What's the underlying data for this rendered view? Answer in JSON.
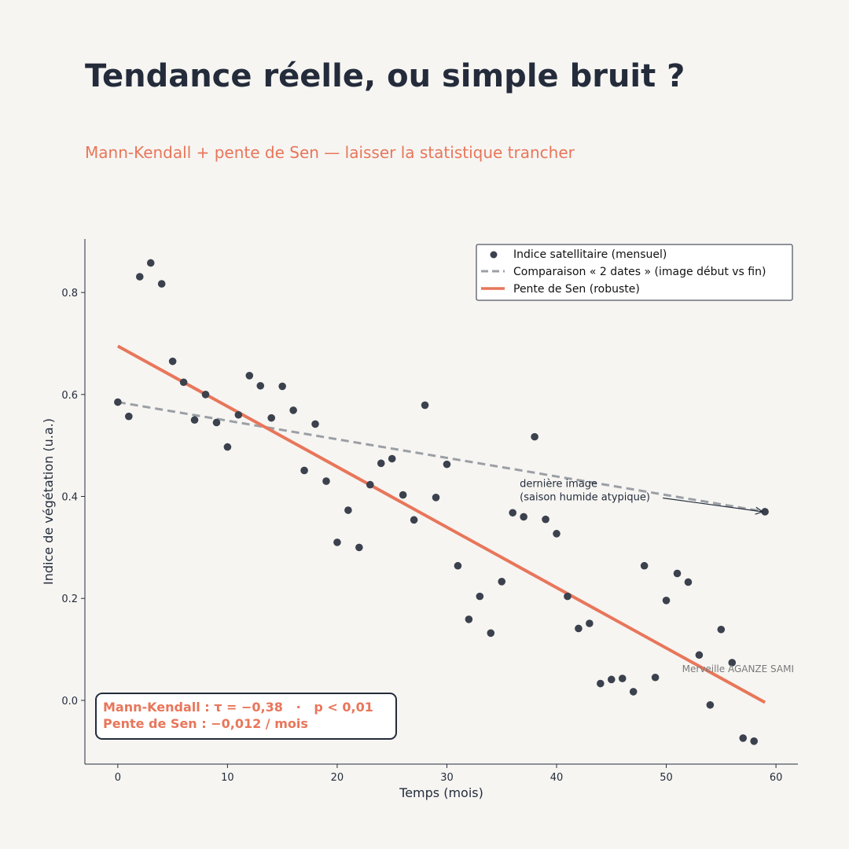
{
  "header": {
    "title": "Tendance réelle, ou simple bruit ?",
    "subtitle": "Mann-Kendall + pente de Sen — laisser la statistique trancher"
  },
  "footer": {
    "credit": "Merveille AGANZE SAMI"
  },
  "colors": {
    "points": "#3b414d",
    "sen_line": "#e8765a",
    "two_dates_line": "#9b9fa5",
    "text": "#242c3b",
    "stats_text": "#e8765a",
    "background": "#f6f5f2"
  },
  "chart_data": {
    "type": "scatter",
    "xlabel": "Temps (mois)",
    "ylabel": "Indice de végétation (u.a.)",
    "xlim": [
      -3,
      62
    ],
    "ylim": [
      -0.125,
      0.905
    ],
    "xticks": [
      0,
      10,
      20,
      30,
      40,
      50,
      60
    ],
    "yticks": [
      0.0,
      0.2,
      0.4,
      0.6,
      0.8
    ],
    "xtick_labels": [
      "0",
      "10",
      "20",
      "30",
      "40",
      "50",
      "60"
    ],
    "ytick_labels": [
      "0.0",
      "0.2",
      "0.4",
      "0.6",
      "0.8"
    ],
    "grid": false,
    "legend_position": "top-right",
    "series": [
      {
        "name": "Indice satellitaire (mensuel)",
        "kind": "scatter",
        "x": [
          0,
          1,
          2,
          3,
          4,
          5,
          6,
          7,
          8,
          9,
          10,
          11,
          12,
          13,
          14,
          15,
          16,
          17,
          18,
          19,
          20,
          21,
          22,
          23,
          24,
          25,
          26,
          27,
          28,
          29,
          30,
          31,
          32,
          33,
          34,
          35,
          36,
          37,
          38,
          39,
          40,
          41,
          42,
          43,
          44,
          45,
          46,
          47,
          48,
          49,
          50,
          51,
          52,
          53,
          54,
          55,
          56,
          57,
          58,
          59
        ],
        "y": [
          0.585,
          0.557,
          0.831,
          0.858,
          0.817,
          0.665,
          0.624,
          0.55,
          0.6,
          0.545,
          0.497,
          0.56,
          0.637,
          0.617,
          0.554,
          0.616,
          0.569,
          0.451,
          0.542,
          0.43,
          0.31,
          0.373,
          0.3,
          0.423,
          0.465,
          0.474,
          0.403,
          0.354,
          0.579,
          0.398,
          0.463,
          0.264,
          0.159,
          0.204,
          0.132,
          0.233,
          0.368,
          0.36,
          0.517,
          0.355,
          0.327,
          0.204,
          0.141,
          0.151,
          0.033,
          0.041,
          0.043,
          0.017,
          0.264,
          0.045,
          0.196,
          0.249,
          0.232,
          0.089,
          -0.009,
          0.139,
          0.074,
          -0.074,
          -0.08,
          0.37
        ]
      },
      {
        "name": "Comparaison « 2 dates » (image début vs fin)",
        "kind": "line-dashed",
        "x": [
          0,
          59
        ],
        "y": [
          0.585,
          0.37
        ]
      },
      {
        "name": "Pente de Sen (robuste)",
        "kind": "line",
        "x": [
          0,
          59
        ],
        "y": [
          0.695,
          -0.004
        ]
      }
    ],
    "annotation": {
      "lines": [
        "dernière image",
        "(saison humide atypique)"
      ],
      "text_x": 37,
      "text_y": 0.4,
      "arrow_to_x": 59,
      "arrow_to_y": 0.37
    },
    "stats_box": {
      "line1": "Mann-Kendall : τ = −0,38   ·   p < 0,01",
      "line2": "Pente de Sen : −0,012 / mois"
    }
  }
}
